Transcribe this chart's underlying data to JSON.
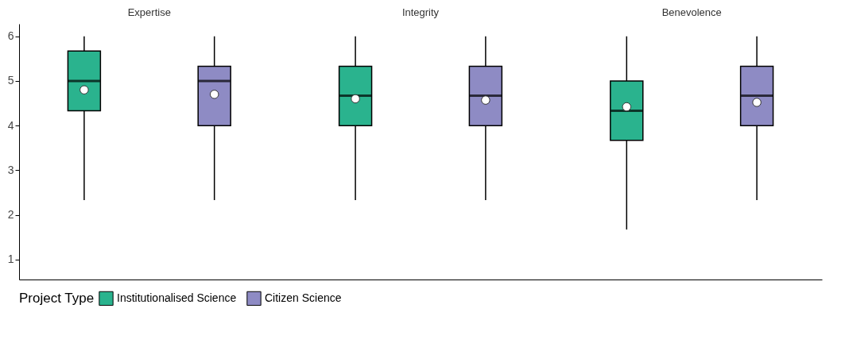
{
  "chart_data": {
    "type": "box",
    "categories": [
      "Expertise",
      "Integrity",
      "Benevolence"
    ],
    "ylim": [
      0.55,
      6.28
    ],
    "yticks": [
      1,
      2,
      3,
      4,
      5,
      6
    ],
    "legend": "bottom",
    "legend_title": "Project Type",
    "grid": false,
    "series": [
      {
        "name": "Institutionalised Science",
        "color": "#2ab38e",
        "boxes": [
          {
            "low": 2.33,
            "q1": 4.33,
            "median": 5,
            "q3": 5.67,
            "high": 6,
            "mean": 4.8
          },
          {
            "low": 2.33,
            "q1": 4,
            "median": 4.67,
            "q3": 5.33,
            "high": 6,
            "mean": 4.6
          },
          {
            "low": 1.67,
            "q1": 3.67,
            "median": 4.33,
            "q3": 5,
            "high": 6,
            "mean": 4.42
          }
        ]
      },
      {
        "name": "Citizen Science",
        "color": "#8e8bc4",
        "boxes": [
          {
            "low": 2.33,
            "q1": 4,
            "median": 5,
            "q3": 5.33,
            "high": 6,
            "mean": 4.7
          },
          {
            "low": 2.33,
            "q1": 4,
            "median": 4.67,
            "q3": 5.33,
            "high": 6,
            "mean": 4.57
          },
          {
            "low": 2.33,
            "q1": 4,
            "median": 4.67,
            "q3": 5.33,
            "high": 6,
            "mean": 4.52
          }
        ]
      }
    ]
  }
}
